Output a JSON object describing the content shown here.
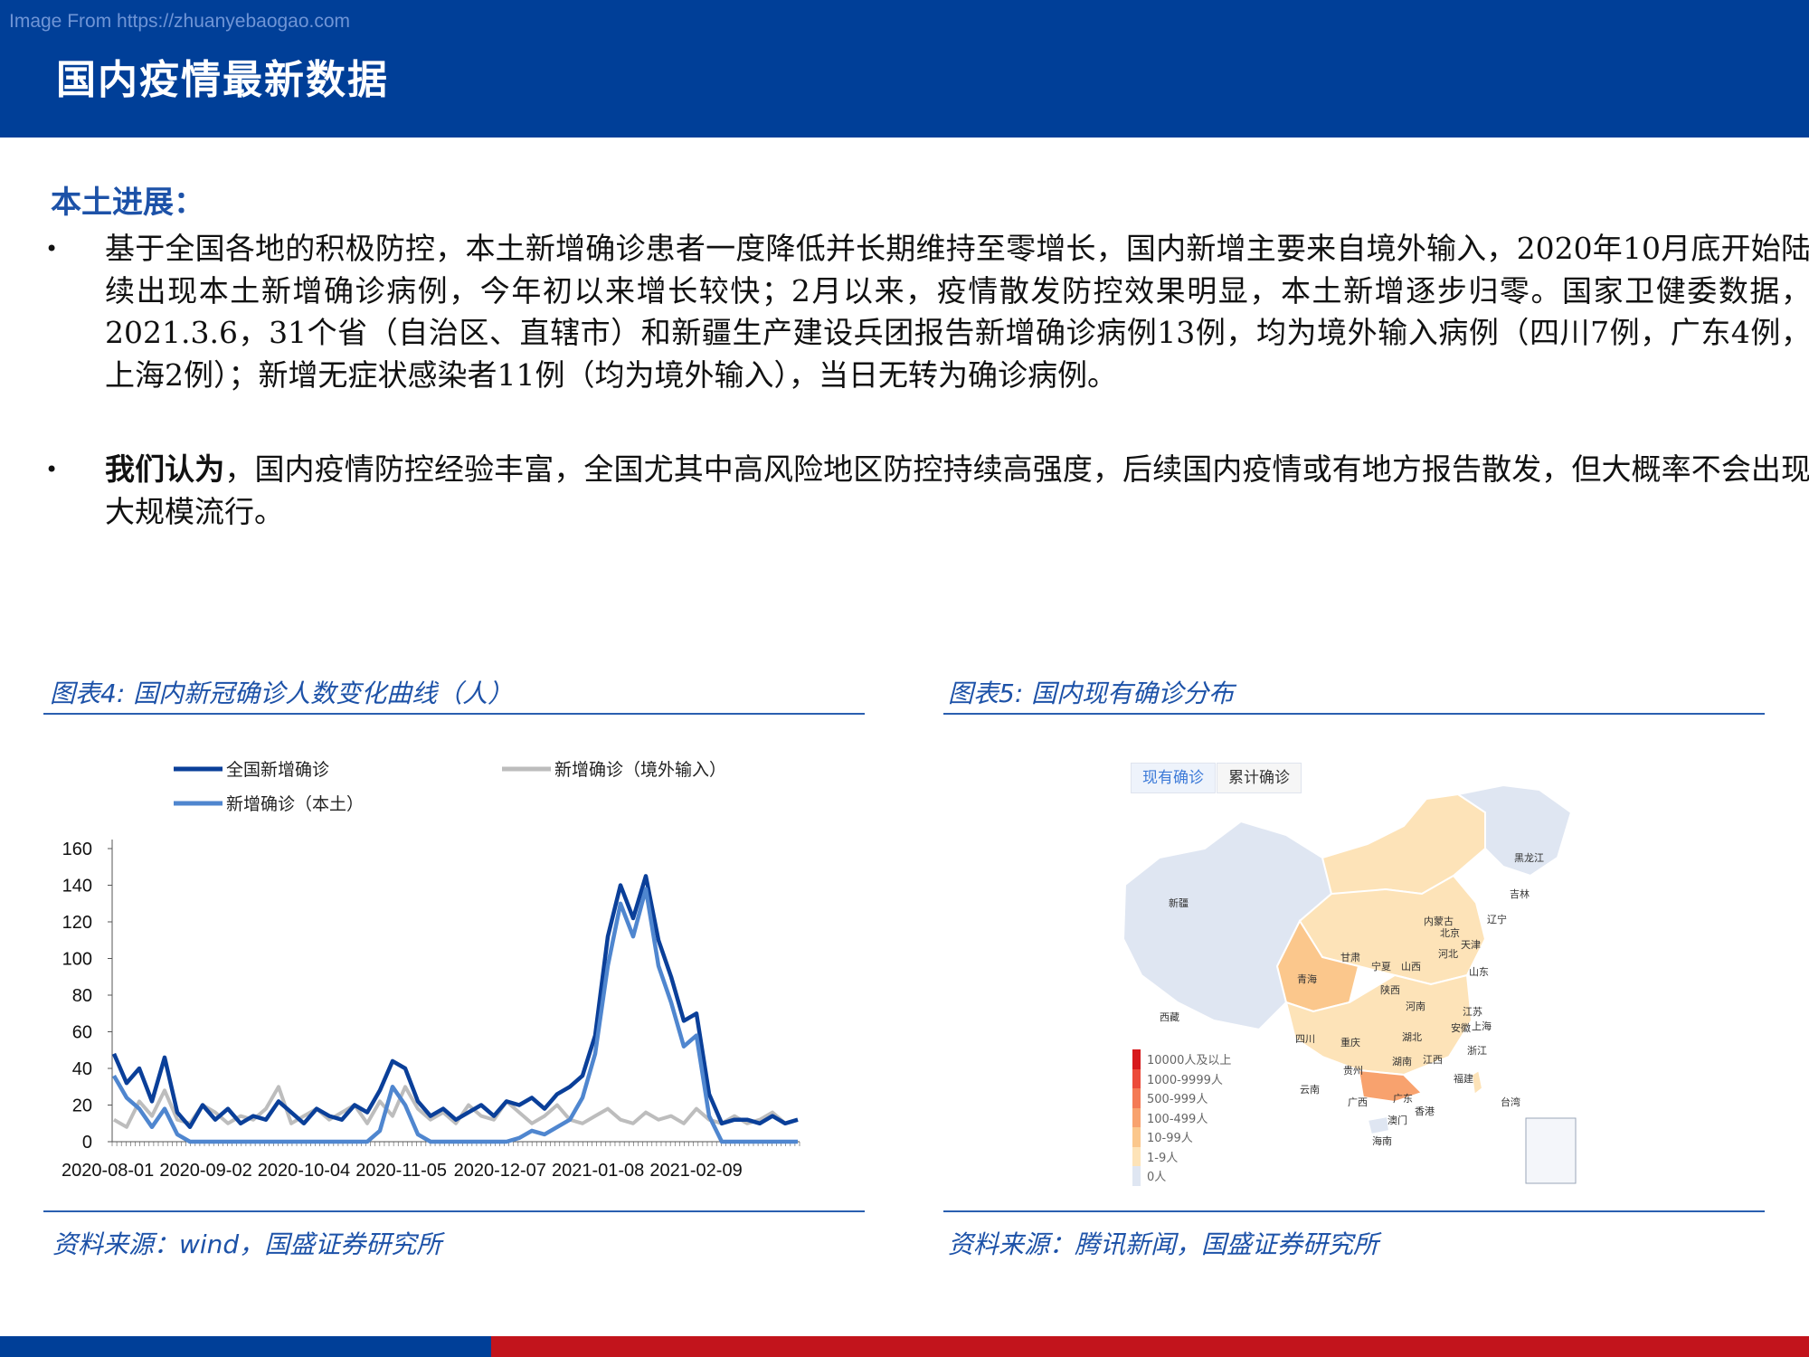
{
  "watermark": "Image From https://zhuanyebaogao.com",
  "page_title": "国内疫情最新数据",
  "section_heading": "本土进展：",
  "bullets": [
    {
      "dot": "•",
      "text": "基于全国各地的积极防控，本土新增确诊患者一度降低并长期维持至零增长，国内新增主要来自境外输入，2020年10月底开始陆续出现本土新增确诊病例，今年初以来增长较快；2月以来，疫情散发防控效果明显，本土新增逐步归零。国家卫健委数据，2021.3.6，31个省（自治区、直辖市）和新疆生产建设兵团报告新增确诊病例13例，均为境外输入病例（四川7例，广东4例，上海2例）；新增无症状感染者11例（均为境外输入），当日无转为确诊病例。"
    },
    {
      "dot": "•",
      "lead": "我们认为",
      "text": "，国内疫情防控经验丰富，全国尤其中高风险地区防控持续高强度，后续国内疫情或有地方报告散发，但大概率不会出现大规模流行。"
    }
  ],
  "figure4": {
    "caption": "图表4:  国内新冠确诊人数变化曲线（人）",
    "source": "资料来源：wind，国盛证券研究所"
  },
  "figure5": {
    "caption": "图表5:  国内现有确诊分布",
    "source": "资料来源：腾讯新闻，国盛证券研究所",
    "tabs": [
      "现有确诊",
      "累计确诊"
    ],
    "legend": [
      {
        "label": "10000人及以上",
        "color": "#d7191c"
      },
      {
        "label": "1000-9999人",
        "color": "#ec4b3a"
      },
      {
        "label": "500-999人",
        "color": "#f47a55"
      },
      {
        "label": "100-499人",
        "color": "#f8a26e"
      },
      {
        "label": "10-99人",
        "color": "#fbc78c"
      },
      {
        "label": "1-9人",
        "color": "#fde3b8"
      },
      {
        "label": "0人",
        "color": "#dfe6f2"
      }
    ],
    "provinces": [
      "黑龙江",
      "吉林",
      "辽宁",
      "内蒙古",
      "新疆",
      "北京",
      "天津",
      "河北",
      "甘肃",
      "宁夏",
      "山西",
      "山东",
      "青海",
      "陕西",
      "河南",
      "西藏",
      "江苏",
      "安徽",
      "上海",
      "湖北",
      "四川",
      "重庆",
      "浙江",
      "江西",
      "湖南",
      "贵州",
      "福建",
      "云南",
      "广西",
      "广东",
      "台湾",
      "香港",
      "澳门",
      "海南"
    ]
  },
  "chart_data": {
    "type": "line",
    "title": "",
    "xlabel": "",
    "ylabel": "",
    "ylim": [
      0,
      160
    ],
    "yticks": [
      0,
      20,
      40,
      60,
      80,
      100,
      120,
      140,
      160
    ],
    "x_tick_labels": [
      "2020-08-01",
      "2020-09-02",
      "2020-10-04",
      "2020-11-05",
      "2020-12-07",
      "2021-01-08",
      "2021-02-09"
    ],
    "x": [
      "2020-08-01",
      "2020-08-05",
      "2020-08-09",
      "2020-08-13",
      "2020-08-17",
      "2020-08-21",
      "2020-08-25",
      "2020-08-29",
      "2020-09-02",
      "2020-09-06",
      "2020-09-10",
      "2020-09-14",
      "2020-09-18",
      "2020-09-22",
      "2020-09-26",
      "2020-09-30",
      "2020-10-04",
      "2020-10-08",
      "2020-10-12",
      "2020-10-16",
      "2020-10-20",
      "2020-10-24",
      "2020-10-28",
      "2020-11-01",
      "2020-11-05",
      "2020-11-09",
      "2020-11-13",
      "2020-11-17",
      "2020-11-21",
      "2020-11-25",
      "2020-11-29",
      "2020-12-03",
      "2020-12-07",
      "2020-12-11",
      "2020-12-15",
      "2020-12-19",
      "2020-12-23",
      "2020-12-27",
      "2020-12-31",
      "2021-01-04",
      "2021-01-08",
      "2021-01-12",
      "2021-01-16",
      "2021-01-20",
      "2021-01-24",
      "2021-01-28",
      "2021-02-01",
      "2021-02-05",
      "2021-02-09",
      "2021-02-13",
      "2021-02-17",
      "2021-02-21",
      "2021-02-25",
      "2021-03-01",
      "2021-03-05"
    ],
    "series": [
      {
        "name": "全国新增确诊",
        "color": "#0a3f99",
        "values": [
          48,
          32,
          40,
          22,
          46,
          16,
          8,
          20,
          12,
          18,
          10,
          14,
          12,
          22,
          16,
          10,
          18,
          14,
          12,
          20,
          16,
          28,
          44,
          40,
          22,
          14,
          18,
          12,
          16,
          20,
          14,
          22,
          20,
          24,
          18,
          26,
          30,
          36,
          58,
          112,
          140,
          122,
          145,
          110,
          90,
          66,
          70,
          26,
          10,
          12,
          12,
          10,
          14,
          10,
          12
        ]
      },
      {
        "name": "新增确诊（境外输入）",
        "color": "#bdbdbd",
        "values": [
          12,
          8,
          22,
          14,
          28,
          12,
          10,
          20,
          16,
          10,
          14,
          12,
          18,
          30,
          10,
          14,
          18,
          12,
          16,
          20,
          10,
          22,
          14,
          30,
          18,
          12,
          16,
          10,
          20,
          14,
          12,
          22,
          16,
          10,
          14,
          20,
          12,
          10,
          14,
          18,
          12,
          10,
          16,
          12,
          14,
          10,
          18,
          12,
          10,
          14,
          10,
          12,
          16,
          10,
          12
        ]
      },
      {
        "name": "新增确诊（本土）",
        "color": "#4f86cf",
        "values": [
          36,
          24,
          18,
          8,
          18,
          4,
          0,
          0,
          0,
          0,
          0,
          0,
          0,
          0,
          0,
          0,
          0,
          0,
          0,
          0,
          0,
          6,
          30,
          20,
          4,
          0,
          0,
          0,
          0,
          0,
          0,
          0,
          2,
          6,
          4,
          8,
          12,
          24,
          48,
          96,
          130,
          112,
          138,
          96,
          76,
          52,
          58,
          14,
          0,
          0,
          0,
          0,
          0,
          0,
          0
        ]
      }
    ],
    "legend_position": "top",
    "grid": false
  }
}
